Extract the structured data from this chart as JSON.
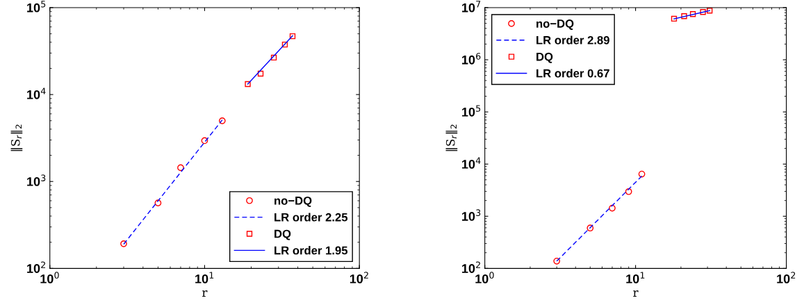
{
  "chart_data": [
    {
      "type": "scatter",
      "xlabel": "r",
      "ylabel": "‖S$_{r}$‖$_{2}$",
      "log": "xy",
      "legend": "bottom right",
      "grid": false,
      "xlim": [
        1,
        100
      ],
      "xticks": [
        {
          "value": 1,
          "label": "10$^{0}$"
        },
        {
          "value": 10,
          "label": "10$^{1}$"
        },
        {
          "value": 100,
          "label": "10$^{2}$"
        }
      ],
      "ylim": [
        100,
        100000
      ],
      "yticks": [
        {
          "value": 100,
          "label": "10$^{2}$"
        },
        {
          "value": 1000,
          "label": "10$^{3}$"
        },
        {
          "value": 10000,
          "label": "10$^{4}$"
        },
        {
          "value": 100000,
          "label": "10$^{5}$"
        }
      ],
      "series": [
        {
          "name": "no−DQ",
          "marker": "circle",
          "color": "#ff0000",
          "x": [
            3,
            5,
            7,
            10,
            13
          ],
          "values": [
            192,
            566,
            1440,
            2950,
            4990
          ]
        },
        {
          "name": "LR order 2.25",
          "type": "line",
          "line_style": "dashed",
          "marker": "none",
          "color": "#0000ff",
          "x": [
            3,
            13
          ],
          "values": [
            190,
            5100
          ]
        },
        {
          "name": "DQ",
          "marker": "square",
          "color": "#ff0000",
          "x": [
            19,
            23,
            28,
            33,
            37
          ],
          "values": [
            13200,
            17400,
            26600,
            37600,
            46900
          ]
        },
        {
          "name": "LR order 1.95",
          "type": "line",
          "line_style": "solid",
          "marker": "none",
          "color": "#0000ff",
          "x": [
            19,
            37
          ],
          "values": [
            13200,
            47500
          ]
        }
      ]
    },
    {
      "type": "scatter",
      "xlabel": "r",
      "ylabel": "‖S$_{r}$‖$_{2}$",
      "log": "xy",
      "legend": "top left",
      "grid": false,
      "xlim": [
        1,
        100
      ],
      "xticks": [
        {
          "value": 1,
          "label": "10$^{0}$"
        },
        {
          "value": 10,
          "label": "10$^{1}$"
        },
        {
          "value": 100,
          "label": "10$^{2}$"
        }
      ],
      "ylim": [
        100,
        10000000
      ],
      "yticks": [
        {
          "value": 100,
          "label": "10$^{2}$"
        },
        {
          "value": 1000,
          "label": "10$^{3}$"
        },
        {
          "value": 10000,
          "label": "10$^{4}$"
        },
        {
          "value": 100000,
          "label": "10$^{5}$"
        },
        {
          "value": 1000000,
          "label": "10$^{6}$"
        },
        {
          "value": 10000000,
          "label": "10$^{7}$"
        }
      ],
      "series": [
        {
          "name": "no−DQ",
          "marker": "circle",
          "color": "#ff0000",
          "x": [
            3,
            5,
            7,
            9,
            11
          ],
          "values": [
            138,
            594,
            1430,
            2970,
            6430
          ]
        },
        {
          "name": "LR order 2.89",
          "type": "line",
          "line_style": "dashed",
          "marker": "none",
          "color": "#0000ff",
          "x": [
            3,
            11
          ],
          "values": [
            138,
            5900
          ]
        },
        {
          "name": "DQ",
          "marker": "square",
          "color": "#ff0000",
          "x": [
            18,
            21,
            24,
            28,
            31
          ],
          "values": [
            6130000,
            6860000,
            7520000,
            8240000,
            8760000
          ]
        },
        {
          "name": "LR order 0.67",
          "type": "line",
          "line_style": "solid",
          "marker": "none",
          "color": "#0000ff",
          "x": [
            18,
            31
          ],
          "values": [
            6100000,
            8780000
          ]
        }
      ]
    }
  ]
}
